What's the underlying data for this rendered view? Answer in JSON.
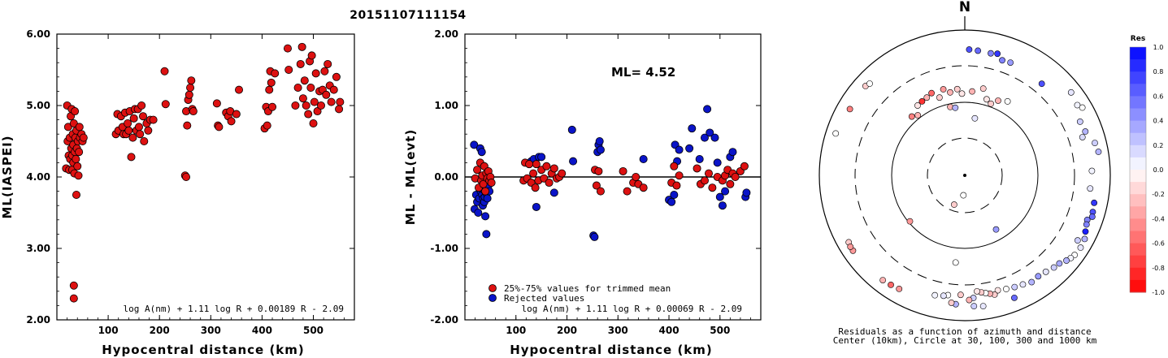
{
  "title": "20151107111154",
  "colors": {
    "accepted": "#dd1111",
    "rejected": "#0a14c8",
    "line": "#000000"
  },
  "chart_data": [
    {
      "type": "scatter",
      "xlabel": "Hypocentral distance (km)",
      "ylabel": "ML(IASPEI)",
      "xlim": [
        0,
        580
      ],
      "ylim": [
        2.0,
        6.0
      ],
      "xticks": [
        "100",
        "200",
        "300",
        "400",
        "500"
      ],
      "yticks": [
        "2.00",
        "3.00",
        "4.00",
        "5.00",
        "6.00"
      ],
      "formula": "log A(nm) + 1.11 log R + 0.00189 R - 2.09",
      "points": [
        [
          18,
          4.12
        ],
        [
          20,
          5.0
        ],
        [
          21,
          4.5
        ],
        [
          22,
          4.7
        ],
        [
          23,
          4.3
        ],
        [
          24,
          4.1
        ],
        [
          25,
          4.55
        ],
        [
          26,
          4.25
        ],
        [
          27,
          4.85
        ],
        [
          28,
          4.4
        ],
        [
          29,
          4.95
        ],
        [
          30,
          4.1
        ],
        [
          30,
          4.3
        ],
        [
          31,
          4.6
        ],
        [
          32,
          4.2
        ],
        [
          32,
          4.45
        ],
        [
          33,
          4.75
        ],
        [
          34,
          4.05
        ],
        [
          35,
          4.35
        ],
        [
          35,
          4.92
        ],
        [
          36,
          4.55
        ],
        [
          37,
          4.25
        ],
        [
          38,
          4.65
        ],
        [
          38,
          3.75
        ],
        [
          39,
          4.4
        ],
        [
          40,
          4.15
        ],
        [
          41,
          4.5
        ],
        [
          42,
          4.02
        ],
        [
          43,
          4.35
        ],
        [
          44,
          4.7
        ],
        [
          45,
          4.55
        ],
        [
          48,
          4.6
        ],
        [
          50,
          4.5
        ],
        [
          52,
          4.55
        ],
        [
          33,
          2.48
        ],
        [
          33,
          2.3
        ],
        [
          115,
          4.6
        ],
        [
          118,
          4.88
        ],
        [
          120,
          4.65
        ],
        [
          125,
          4.85
        ],
        [
          128,
          4.7
        ],
        [
          130,
          4.6
        ],
        [
          133,
          4.9
        ],
        [
          135,
          4.6
        ],
        [
          138,
          4.75
        ],
        [
          140,
          4.65
        ],
        [
          142,
          4.92
        ],
        [
          145,
          4.28
        ],
        [
          148,
          4.55
        ],
        [
          150,
          4.82
        ],
        [
          152,
          4.95
        ],
        [
          155,
          4.65
        ],
        [
          158,
          4.95
        ],
        [
          160,
          4.7
        ],
        [
          162,
          4.6
        ],
        [
          165,
          5.0
        ],
        [
          168,
          4.85
        ],
        [
          170,
          4.5
        ],
        [
          175,
          4.75
        ],
        [
          178,
          4.65
        ],
        [
          182,
          4.8
        ],
        [
          188,
          4.8
        ],
        [
          210,
          5.48
        ],
        [
          212,
          5.02
        ],
        [
          250,
          4.02
        ],
        [
          252,
          4.0
        ],
        [
          252,
          4.92
        ],
        [
          254,
          4.72
        ],
        [
          256,
          5.08
        ],
        [
          258,
          5.15
        ],
        [
          260,
          5.25
        ],
        [
          262,
          5.35
        ],
        [
          264,
          4.95
        ],
        [
          266,
          4.92
        ],
        [
          312,
          5.03
        ],
        [
          314,
          4.72
        ],
        [
          316,
          4.7
        ],
        [
          330,
          4.9
        ],
        [
          334,
          4.85
        ],
        [
          338,
          4.92
        ],
        [
          340,
          4.78
        ],
        [
          350,
          4.88
        ],
        [
          355,
          5.22
        ],
        [
          405,
          4.68
        ],
        [
          408,
          4.98
        ],
        [
          410,
          4.72
        ],
        [
          412,
          4.92
        ],
        [
          414,
          5.22
        ],
        [
          416,
          5.48
        ],
        [
          418,
          5.32
        ],
        [
          420,
          4.98
        ],
        [
          425,
          5.45
        ],
        [
          450,
          5.8
        ],
        [
          452,
          5.5
        ],
        [
          465,
          5.0
        ],
        [
          470,
          5.25
        ],
        [
          475,
          5.58
        ],
        [
          478,
          5.82
        ],
        [
          480,
          5.1
        ],
        [
          483,
          5.35
        ],
        [
          486,
          5.0
        ],
        [
          490,
          4.88
        ],
        [
          493,
          5.62
        ],
        [
          495,
          5.25
        ],
        [
          497,
          5.7
        ],
        [
          500,
          4.75
        ],
        [
          502,
          5.05
        ],
        [
          505,
          5.45
        ],
        [
          508,
          4.92
        ],
        [
          512,
          5.2
        ],
        [
          515,
          5.0
        ],
        [
          518,
          5.22
        ],
        [
          522,
          5.48
        ],
        [
          525,
          5.15
        ],
        [
          528,
          5.58
        ],
        [
          532,
          5.28
        ],
        [
          535,
          5.05
        ],
        [
          540,
          5.22
        ],
        [
          545,
          5.4
        ],
        [
          550,
          4.95
        ],
        [
          552,
          5.05
        ]
      ]
    },
    {
      "type": "scatter",
      "xlabel": "Hypocentral distance (km)",
      "ylabel": "ML - ML(evt)",
      "xlim": [
        0,
        580
      ],
      "ylim": [
        -2.0,
        2.0
      ],
      "xticks": [
        "100",
        "200",
        "300",
        "400",
        "500"
      ],
      "yticks": [
        "-2.00",
        "-1.00",
        "0.00",
        "1.00",
        "2.00"
      ],
      "reference_line": 0.0,
      "annotation": "ML= 4.52",
      "formula": "log A(nm) + 1.11 log R + 0.00069 R - 2.09",
      "legend": {
        "accepted": "25%-75% values for trimmed mean",
        "rejected": "Rejected values"
      },
      "accepted_points": [
        [
          20,
          -0.02
        ],
        [
          24,
          0.1
        ],
        [
          27,
          -0.15
        ],
        [
          30,
          0.2
        ],
        [
          32,
          -0.05
        ],
        [
          34,
          0.02
        ],
        [
          36,
          -0.1
        ],
        [
          38,
          0.15
        ],
        [
          40,
          -0.2
        ],
        [
          42,
          0.05
        ],
        [
          44,
          -0.02
        ],
        [
          46,
          0.08
        ],
        [
          48,
          -0.05
        ],
        [
          50,
          0.0
        ],
        [
          52,
          -0.08
        ],
        [
          115,
          -0.05
        ],
        [
          118,
          0.2
        ],
        [
          122,
          -0.02
        ],
        [
          126,
          0.18
        ],
        [
          130,
          -0.08
        ],
        [
          134,
          0.05
        ],
        [
          138,
          -0.15
        ],
        [
          140,
          0.18
        ],
        [
          144,
          -0.05
        ],
        [
          150,
          0.1
        ],
        [
          155,
          -0.02
        ],
        [
          160,
          0.15
        ],
        [
          165,
          -0.08
        ],
        [
          170,
          0.05
        ],
        [
          175,
          0.12
        ],
        [
          180,
          -0.02
        ],
        [
          185,
          0.0
        ],
        [
          190,
          0.05
        ],
        [
          255,
          0.1
        ],
        [
          258,
          -0.12
        ],
        [
          262,
          0.08
        ],
        [
          266,
          -0.2
        ],
        [
          310,
          0.08
        ],
        [
          318,
          -0.2
        ],
        [
          330,
          -0.08
        ],
        [
          335,
          0.0
        ],
        [
          340,
          -0.1
        ],
        [
          350,
          -0.15
        ],
        [
          405,
          -0.08
        ],
        [
          410,
          0.15
        ],
        [
          415,
          -0.12
        ],
        [
          420,
          0.02
        ],
        [
          455,
          0.12
        ],
        [
          462,
          -0.1
        ],
        [
          470,
          -0.05
        ],
        [
          478,
          0.05
        ],
        [
          485,
          -0.15
        ],
        [
          495,
          0.0
        ],
        [
          505,
          -0.05
        ],
        [
          510,
          0.02
        ],
        [
          515,
          0.1
        ],
        [
          520,
          -0.1
        ],
        [
          525,
          0.05
        ],
        [
          530,
          0.0
        ],
        [
          540,
          0.08
        ],
        [
          548,
          0.15
        ]
      ],
      "rejected_points": [
        [
          18,
          0.45
        ],
        [
          19,
          -0.45
        ],
        [
          22,
          -0.25
        ],
        [
          24,
          -0.35
        ],
        [
          26,
          -0.5
        ],
        [
          28,
          -0.3
        ],
        [
          30,
          0.4
        ],
        [
          31,
          -0.2
        ],
        [
          32,
          -0.15
        ],
        [
          33,
          0.35
        ],
        [
          34,
          -0.25
        ],
        [
          35,
          -0.4
        ],
        [
          36,
          -0.3
        ],
        [
          37,
          -0.18
        ],
        [
          38,
          -0.35
        ],
        [
          39,
          -0.28
        ],
        [
          40,
          -0.55
        ],
        [
          41,
          -0.22
        ],
        [
          42,
          -0.8
        ],
        [
          44,
          -0.3
        ],
        [
          46,
          -0.12
        ],
        [
          48,
          -0.2
        ],
        [
          130,
          0.22
        ],
        [
          135,
          0.25
        ],
        [
          140,
          -0.42
        ],
        [
          145,
          0.28
        ],
        [
          150,
          0.28
        ],
        [
          175,
          -0.22
        ],
        [
          210,
          0.66
        ],
        [
          212,
          0.22
        ],
        [
          252,
          -0.82
        ],
        [
          254,
          -0.84
        ],
        [
          260,
          0.35
        ],
        [
          262,
          0.45
        ],
        [
          264,
          0.5
        ],
        [
          266,
          0.38
        ],
        [
          350,
          0.25
        ],
        [
          400,
          -0.32
        ],
        [
          405,
          -0.35
        ],
        [
          410,
          -0.25
        ],
        [
          412,
          0.45
        ],
        [
          416,
          0.22
        ],
        [
          420,
          0.38
        ],
        [
          440,
          0.4
        ],
        [
          445,
          0.68
        ],
        [
          460,
          0.25
        ],
        [
          470,
          0.55
        ],
        [
          475,
          0.95
        ],
        [
          480,
          0.62
        ],
        [
          490,
          0.55
        ],
        [
          495,
          0.2
        ],
        [
          500,
          -0.28
        ],
        [
          505,
          -0.4
        ],
        [
          510,
          -0.2
        ],
        [
          520,
          0.28
        ],
        [
          525,
          0.35
        ],
        [
          550,
          -0.28
        ],
        [
          552,
          -0.22
        ]
      ]
    },
    {
      "type": "scatter",
      "subtype": "polar",
      "north_label": "N",
      "caption_line1": "Residuals as a function of azimuth and distance",
      "caption_line2": "Center (10km), Circle at 30, 100, 300 and 1000 km",
      "colorbar_title": "Res",
      "colorbar_ticks": [
        "1.0",
        "0.8",
        "0.6",
        "0.4",
        "0.2",
        "0.0",
        "-0.2",
        "-0.4",
        "-0.6",
        "-0.8",
        "-1.0"
      ],
      "radii_km": [
        30,
        100,
        300,
        1000
      ],
      "points": [
        [
          2,
          520,
          0.7
        ],
        [
          6,
          510,
          0.6
        ],
        [
          12,
          500,
          0.5
        ],
        [
          15,
          520,
          0.8
        ],
        [
          18,
          440,
          0.5
        ],
        [
          22,
          450,
          0.4
        ],
        [
          40,
          420,
          0.7
        ],
        [
          52,
          700,
          0.1
        ],
        [
          58,
          650,
          0.05
        ],
        [
          60,
          720,
          0.0
        ],
        [
          65,
          540,
          0.2
        ],
        [
          72,
          480,
          0.15
        ],
        [
          70,
          560,
          0.3
        ],
        [
          76,
          680,
          0.2
        ],
        [
          80,
          720,
          0.3
        ],
        [
          88,
          540,
          0.05
        ],
        [
          96,
          520,
          0.1
        ],
        [
          102,
          640,
          0.8
        ],
        [
          106,
          660,
          0.7
        ],
        [
          108,
          680,
          0.6
        ],
        [
          110,
          600,
          0.5
        ],
        [
          112,
          620,
          0.5
        ],
        [
          115,
          660,
          0.9
        ],
        [
          118,
          720,
          0.3
        ],
        [
          120,
          600,
          0.2
        ],
        [
          122,
          740,
          0.1
        ],
        [
          126,
          720,
          0.0
        ],
        [
          128,
          690,
          0.05
        ],
        [
          130,
          650,
          0.3
        ],
        [
          133,
          580,
          0.35
        ],
        [
          136,
          560,
          0.2
        ],
        [
          140,
          520,
          0.1
        ],
        [
          144,
          500,
          0.4
        ],
        [
          148,
          520,
          0.3
        ],
        [
          152,
          480,
          0.1
        ],
        [
          156,
          460,
          0.2
        ],
        [
          158,
          640,
          0.6
        ],
        [
          160,
          440,
          0.0
        ],
        [
          164,
          420,
          -0.1
        ],
        [
          166,
          470,
          -0.2
        ],
        [
          168,
          440,
          -0.3
        ],
        [
          170,
          420,
          0.0
        ],
        [
          172,
          400,
          -0.2
        ],
        [
          174,
          380,
          -0.1
        ],
        [
          176,
          470,
          0.2
        ],
        [
          178,
          500,
          -0.3
        ],
        [
          182,
          420,
          -0.2
        ],
        [
          184,
          580,
          0.3
        ],
        [
          186,
          560,
          -0.2
        ],
        [
          188,
          440,
          0.0
        ],
        [
          172,
          640,
          0.1
        ],
        [
          176,
          620,
          0.2
        ],
        [
          190,
          460,
          0.1
        ],
        [
          194,
          480,
          0.05
        ],
        [
          186,
          155,
          0.0
        ],
        [
          210,
          620,
          -0.4
        ],
        [
          214,
          640,
          -0.6
        ],
        [
          218,
          660,
          -0.3
        ],
        [
          236,
          700,
          -0.4
        ],
        [
          240,
          680,
          -0.2
        ],
        [
          184,
          18,
          0.0
        ],
        [
          230,
          95,
          -0.4
        ],
        [
          238,
          700,
          -0.4
        ],
        [
          288,
          720,
          0.0
        ],
        [
          300,
          650,
          -0.5
        ],
        [
          312,
          670,
          -0.2
        ],
        [
          314,
          640,
          0.0
        ],
        [
          318,
          120,
          -0.5
        ],
        [
          322,
          110,
          -0.3
        ],
        [
          326,
          140,
          -0.1
        ],
        [
          330,
          145,
          -0.8
        ],
        [
          334,
          150,
          -0.3
        ],
        [
          338,
          160,
          -0.6
        ],
        [
          342,
          130,
          -0.2
        ],
        [
          346,
          160,
          -0.4
        ],
        [
          350,
          140,
          -0.3
        ],
        [
          355,
          150,
          -0.2
        ],
        [
          358,
          130,
          -0.1
        ],
        [
          5,
          140,
          -0.3
        ],
        [
          12,
          160,
          -0.2
        ],
        [
          16,
          120,
          -0.1
        ],
        [
          20,
          110,
          -0.2
        ],
        [
          24,
          130,
          -0.3
        ],
        [
          30,
          145,
          0.0
        ],
        [
          348,
          90,
          -0.3
        ],
        [
          352,
          85,
          0.3
        ],
        [
          10,
          60,
          0.1
        ],
        [
          200,
          25,
          -0.2
        ],
        [
          150,
          70,
          0.4
        ]
      ]
    }
  ]
}
